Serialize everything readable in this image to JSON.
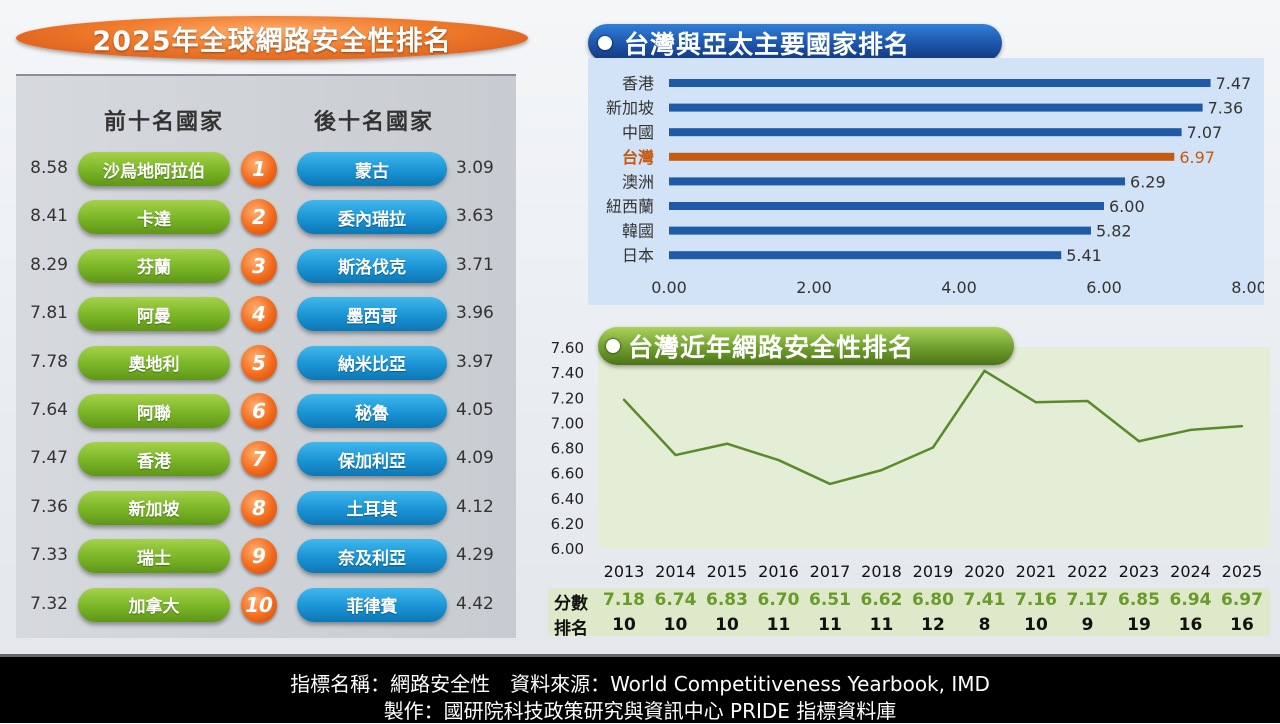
{
  "title": "2025年全球網路安全性排名",
  "left": {
    "top_header": "前十名國家",
    "bottom_header": "後十名國家",
    "top10": [
      {
        "rank": "1",
        "country": "沙烏地阿拉伯",
        "score": "8.58"
      },
      {
        "rank": "2",
        "country": "卡達",
        "score": "8.41"
      },
      {
        "rank": "3",
        "country": "芬蘭",
        "score": "8.29"
      },
      {
        "rank": "4",
        "country": "阿曼",
        "score": "7.81"
      },
      {
        "rank": "5",
        "country": "奧地利",
        "score": "7.78"
      },
      {
        "rank": "6",
        "country": "阿聯",
        "score": "7.64"
      },
      {
        "rank": "7",
        "country": "香港",
        "score": "7.47"
      },
      {
        "rank": "8",
        "country": "新加坡",
        "score": "7.36"
      },
      {
        "rank": "9",
        "country": "瑞士",
        "score": "7.33"
      },
      {
        "rank": "10",
        "country": "加拿大",
        "score": "7.32"
      }
    ],
    "bottom10": [
      {
        "country": "蒙古",
        "score": "3.09"
      },
      {
        "country": "委內瑞拉",
        "score": "3.63"
      },
      {
        "country": "斯洛伐克",
        "score": "3.71"
      },
      {
        "country": "墨西哥",
        "score": "3.96"
      },
      {
        "country": "納米比亞",
        "score": "3.97"
      },
      {
        "country": "秘魯",
        "score": "4.05"
      },
      {
        "country": "保加利亞",
        "score": "4.09"
      },
      {
        "country": "土耳其",
        "score": "4.12"
      },
      {
        "country": "奈及利亞",
        "score": "4.29"
      },
      {
        "country": "菲律賓",
        "score": "4.42"
      }
    ]
  },
  "chart_data": [
    {
      "type": "bar",
      "orientation": "horizontal",
      "title": "台灣與亞太主要國家排名",
      "categories": [
        "香港",
        "新加坡",
        "中國",
        "台灣",
        "澳洲",
        "紐西蘭",
        "韓國",
        "日本"
      ],
      "values": [
        7.47,
        7.36,
        7.07,
        6.97,
        6.29,
        6.0,
        5.82,
        5.41
      ],
      "value_labels": [
        "7.47",
        "7.36",
        "7.07",
        "6.97",
        "6.29",
        "6.00",
        "5.82",
        "5.41"
      ],
      "highlight": "台灣",
      "xlim": [
        0,
        8
      ],
      "xticks": [
        "0.00",
        "2.00",
        "4.00",
        "6.00",
        "8.00"
      ],
      "colors": {
        "bar": "#1f5aa6",
        "highlight": "#c55a11"
      }
    },
    {
      "type": "line",
      "title": "台灣近年網路安全性排名",
      "x": [
        "2013",
        "2014",
        "2015",
        "2016",
        "2017",
        "2018",
        "2019",
        "2020",
        "2021",
        "2022",
        "2023",
        "2024",
        "2025"
      ],
      "values": [
        7.18,
        6.74,
        6.83,
        6.7,
        6.51,
        6.62,
        6.8,
        7.41,
        7.16,
        7.17,
        6.85,
        6.94,
        6.97
      ],
      "ylim": [
        6.0,
        7.6
      ],
      "yticks": [
        "7.60",
        "7.40",
        "7.20",
        "7.00",
        "6.80",
        "6.60",
        "6.40",
        "6.20",
        "6.00"
      ],
      "colors": {
        "line": "#5a8a2a",
        "plot_bg": "#e4edd6"
      },
      "table": {
        "score_label": "分數",
        "rank_label": "排名",
        "scores": [
          "7.18",
          "6.74",
          "6.83",
          "6.70",
          "6.51",
          "6.62",
          "6.80",
          "7.41",
          "7.16",
          "7.17",
          "6.85",
          "6.94",
          "6.97"
        ],
        "ranks": [
          "10",
          "10",
          "10",
          "11",
          "11",
          "11",
          "12",
          "8",
          "10",
          "9",
          "19",
          "16",
          "16"
        ]
      }
    }
  ],
  "footer": {
    "line1": "指標名稱：網路安全性　資料來源：World Competitiveness Yearbook, IMD",
    "line2": "製作：國研院科技政策研究與資訊中心 PRIDE 指標資料庫"
  }
}
